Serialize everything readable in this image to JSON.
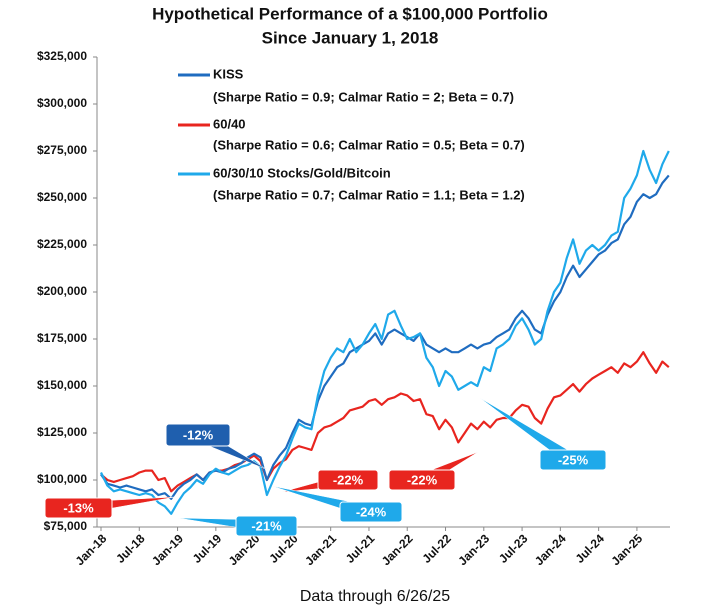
{
  "chart_data": {
    "type": "line",
    "title": [
      "Hypothetical Performance of a $100,000 Portfolio",
      "Since January 1, 2018"
    ],
    "footnote": "Data through 6/26/25",
    "categories": [
      "Jan-18",
      null,
      null,
      null,
      null,
      null,
      "Jul-18",
      null,
      null,
      null,
      null,
      null,
      "Jan-19",
      null,
      null,
      null,
      null,
      null,
      "Jul-19",
      null,
      null,
      null,
      null,
      null,
      "Jan-20",
      null,
      null,
      null,
      null,
      null,
      "Jul-20",
      null,
      null,
      null,
      null,
      null,
      "Jan-21",
      null,
      null,
      null,
      null,
      null,
      "Jul-21",
      null,
      null,
      null,
      null,
      null,
      "Jan-22",
      null,
      null,
      null,
      null,
      null,
      "Jul-22",
      null,
      null,
      null,
      null,
      null,
      "Jan-23",
      null,
      null,
      null,
      null,
      null,
      "Jul-23",
      null,
      null,
      null,
      null,
      null,
      "Jan-24",
      null,
      null,
      null,
      null,
      null,
      "Jul-24",
      null,
      null,
      null,
      null,
      null,
      "Jan-25",
      null,
      null,
      null,
      null,
      null
    ],
    "series": [
      {
        "name": "KISS",
        "detail": "(Sharpe Ratio = 0.9; Calmar Ratio = 2; Beta = 0.7)",
        "color": "#1f6cc0",
        "values": [
          103000,
          98000,
          97000,
          96000,
          97000,
          96000,
          95000,
          94000,
          95000,
          92000,
          93000,
          90000,
          95000,
          98000,
          100000,
          103000,
          100000,
          104000,
          105000,
          104000,
          106000,
          107000,
          109000,
          112000,
          114000,
          112000,
          100000,
          108000,
          113000,
          117000,
          125000,
          132000,
          130000,
          129000,
          142000,
          150000,
          155000,
          160000,
          162000,
          168000,
          170000,
          172000,
          174000,
          178000,
          172000,
          178000,
          180000,
          178000,
          176000,
          174000,
          178000,
          172000,
          170000,
          168000,
          170000,
          168000,
          168000,
          170000,
          172000,
          170000,
          172000,
          173000,
          176000,
          178000,
          180000,
          186000,
          190000,
          186000,
          180000,
          178000,
          188000,
          195000,
          200000,
          208000,
          214000,
          208000,
          212000,
          216000,
          220000,
          222000,
          226000,
          228000,
          236000,
          240000,
          248000,
          252000,
          250000,
          252000,
          258000,
          262000
        ]
      },
      {
        "name": "60/40",
        "detail": "(Sharpe Ratio = 0.6; Calmar Ratio = 0.5; Beta = 0.7)",
        "color": "#e8251f",
        "values": [
          103000,
          100000,
          99000,
          100000,
          101000,
          102000,
          104000,
          105000,
          105000,
          100000,
          101000,
          94000,
          97000,
          99000,
          101000,
          103000,
          100000,
          104000,
          105000,
          105000,
          106000,
          108000,
          109000,
          111000,
          113000,
          110000,
          100000,
          106000,
          109000,
          111000,
          116000,
          118000,
          117000,
          116000,
          125000,
          128000,
          129000,
          131000,
          133000,
          137000,
          138000,
          139000,
          142000,
          143000,
          140000,
          143000,
          144000,
          146000,
          145000,
          142000,
          143000,
          135000,
          134000,
          127000,
          132000,
          128000,
          120000,
          125000,
          130000,
          127000,
          131000,
          128000,
          132000,
          133000,
          133000,
          137000,
          140000,
          139000,
          133000,
          130000,
          138000,
          144000,
          145000,
          148000,
          151000,
          147000,
          151000,
          154000,
          156000,
          158000,
          160000,
          157000,
          162000,
          160000,
          163000,
          168000,
          162000,
          157000,
          163000,
          160000
        ]
      },
      {
        "name": "60/30/10 Stocks/Gold/Bitcoin",
        "detail": "(Sharpe Ratio = 0.7; Calmar Ratio = 1.1; Beta = 1.2)",
        "color": "#1fa9ea",
        "values": [
          104000,
          97000,
          94000,
          95000,
          94000,
          93000,
          92000,
          93000,
          92000,
          88000,
          86000,
          82000,
          88000,
          93000,
          96000,
          100000,
          98000,
          103000,
          106000,
          104000,
          103000,
          105000,
          107000,
          108000,
          110000,
          107000,
          92000,
          100000,
          107000,
          113000,
          122000,
          130000,
          128000,
          127000,
          145000,
          158000,
          165000,
          170000,
          168000,
          175000,
          168000,
          172000,
          178000,
          183000,
          175000,
          188000,
          190000,
          182000,
          175000,
          176000,
          178000,
          165000,
          160000,
          150000,
          158000,
          155000,
          148000,
          150000,
          152000,
          150000,
          160000,
          158000,
          170000,
          172000,
          175000,
          182000,
          186000,
          180000,
          172000,
          175000,
          190000,
          200000,
          205000,
          218000,
          228000,
          215000,
          222000,
          225000,
          222000,
          225000,
          230000,
          232000,
          250000,
          255000,
          262000,
          275000,
          265000,
          258000,
          268000,
          275000
        ]
      }
    ],
    "ylim": [
      75000,
      325000
    ],
    "yticks": [
      {
        "value": 75000,
        "label": "$75,000"
      },
      {
        "value": 100000,
        "label": "$100,000"
      },
      {
        "value": 125000,
        "label": "$125,000"
      },
      {
        "value": 150000,
        "label": "$150,000"
      },
      {
        "value": 175000,
        "label": "$175,000"
      },
      {
        "value": 200000,
        "label": "$200,000"
      },
      {
        "value": 225000,
        "label": "$225,000"
      },
      {
        "value": 250000,
        "label": "$250,000"
      },
      {
        "value": 275000,
        "label": "$275,000"
      },
      {
        "value": 300000,
        "label": "$300,000"
      },
      {
        "value": 325000,
        "label": "$325,000"
      }
    ],
    "grid": false,
    "annotations": [
      {
        "text": "-13%",
        "color": "#e8251f"
      },
      {
        "text": "-12%",
        "color": "#1f5fae"
      },
      {
        "text": "-21%",
        "color": "#1fa9ea"
      },
      {
        "text": "-22%",
        "color": "#e8251f"
      },
      {
        "text": "-24%",
        "color": "#1fa9ea"
      },
      {
        "text": "-22%",
        "color": "#e8251f"
      },
      {
        "text": "-25%",
        "color": "#1fa9ea"
      }
    ]
  }
}
